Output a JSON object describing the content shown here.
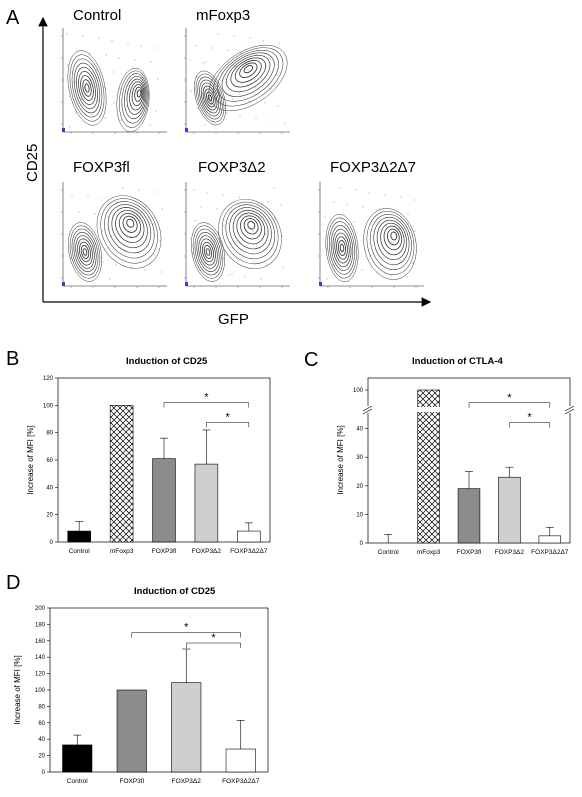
{
  "panels": {
    "A": "A",
    "B": "B",
    "C": "C",
    "D": "D"
  },
  "flow": {
    "titles": [
      "Control",
      "mFoxp3",
      "FOXP3fl",
      "FOXP3Δ2",
      "FOXP3Δ2Δ7"
    ],
    "y_axis_label": "CD25",
    "x_axis_label": "GFP"
  },
  "chart_data": [
    {
      "id": "B",
      "type": "bar",
      "title": "Induction of CD25",
      "ylabel": "Increase of MFI [%]",
      "categories": [
        "Control",
        "mFoxp3",
        "FOXP3fl",
        "FOXP3Δ2",
        "FOXP3Δ2Δ7"
      ],
      "values": [
        8,
        100,
        61,
        57,
        8
      ],
      "errors": [
        7,
        0,
        15,
        25,
        6
      ],
      "fills": [
        "#000000",
        "hatch",
        "#8c8c8c",
        "#cfcfcf",
        "#ffffff"
      ],
      "ylim": [
        0,
        120
      ],
      "yticks": [
        0,
        20,
        40,
        60,
        80,
        100,
        120
      ],
      "significance": [
        {
          "from": 2,
          "to": 4,
          "label": "*"
        },
        {
          "from": 3,
          "to": 4,
          "label": "*"
        }
      ]
    },
    {
      "id": "C",
      "type": "bar",
      "title": "Induction of CTLA-4",
      "ylabel": "Increase of MFI [%]",
      "categories": [
        "Control",
        "mFoxp3",
        "FOXP3fl",
        "FOXP3Δ2",
        "FOXP3Δ2Δ7"
      ],
      "values": [
        0,
        100,
        19,
        23,
        2.5
      ],
      "errors": [
        3,
        0,
        6,
        3.5,
        3
      ],
      "fills": [
        "#000000",
        "hatch",
        "#8c8c8c",
        "#cfcfcf",
        "#ffffff"
      ],
      "ylim": [
        0,
        100
      ],
      "broken_axis": {
        "lower": [
          0,
          45
        ],
        "upper_tick": 100
      },
      "yticks": [
        0,
        10,
        20,
        30,
        40,
        100
      ],
      "significance": [
        {
          "from": 2,
          "to": 4,
          "label": "*"
        },
        {
          "from": 3,
          "to": 4,
          "label": "*"
        }
      ]
    },
    {
      "id": "D",
      "type": "bar",
      "title": "Induction of CD25",
      "ylabel": "Increase of MFI [%]",
      "categories": [
        "Control",
        "FOXP3fl",
        "FOXP3Δ2",
        "FOXP3Δ2Δ7"
      ],
      "values": [
        33,
        100,
        109,
        28
      ],
      "errors": [
        12,
        0,
        41,
        35
      ],
      "fills": [
        "#000000",
        "#8c8c8c",
        "#cfcfcf",
        "#ffffff"
      ],
      "ylim": [
        0,
        200
      ],
      "yticks": [
        0,
        20,
        40,
        60,
        80,
        100,
        120,
        140,
        160,
        180,
        200
      ],
      "significance": [
        {
          "from": 1,
          "to": 3,
          "label": "*"
        },
        {
          "from": 2,
          "to": 3,
          "label": "*"
        }
      ]
    }
  ]
}
